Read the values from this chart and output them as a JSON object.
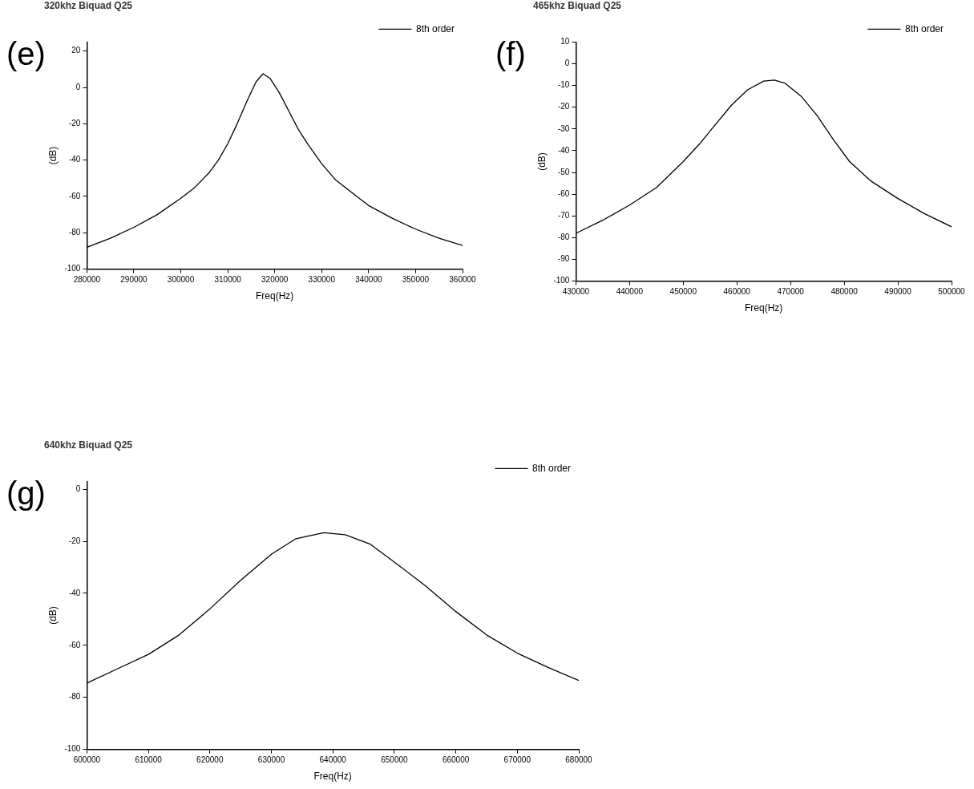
{
  "chart_data": [
    {
      "type": "line",
      "title": "320khz Biquad Q25",
      "xlabel": "Freq(Hz)",
      "ylabel": "(dB)",
      "annotations": [
        "(e)"
      ],
      "legend": "top right",
      "grid": false,
      "marker": "none",
      "line_style": "solid",
      "xlim": [
        280000,
        360000
      ],
      "xticks": [
        280000,
        290000,
        300000,
        310000,
        320000,
        330000,
        340000,
        350000,
        360000
      ],
      "ylim": [
        -100,
        25
      ],
      "yticks": [
        -100,
        -80,
        -60,
        -40,
        -20,
        0,
        20
      ],
      "series": [
        {
          "name": "8th order",
          "color": "#000000",
          "x": [
            280000,
            285000,
            290000,
            295000,
            300000,
            303000,
            306000,
            308000,
            310000,
            312000,
            314000,
            316000,
            317500,
            319000,
            321000,
            323000,
            325000,
            327000,
            330000,
            333000,
            336000,
            340000,
            345000,
            350000,
            355000,
            360000
          ],
          "values": [
            -88,
            -83,
            -77,
            -70,
            -61,
            -55,
            -47,
            -40,
            -31,
            -20,
            -8,
            3,
            7.5,
            5,
            -3,
            -13,
            -23,
            -31,
            -42,
            -51,
            -57,
            -65,
            -72,
            -78,
            -83,
            -87
          ]
        }
      ]
    },
    {
      "type": "line",
      "title": "465khz Biquad Q25",
      "xlabel": "Freq(Hz)",
      "ylabel": "(dB)",
      "annotations": [
        "(f)"
      ],
      "legend": "top right",
      "grid": false,
      "marker": "none",
      "line_style": "solid",
      "xlim": [
        430000,
        500000
      ],
      "xticks": [
        430000,
        440000,
        450000,
        460000,
        470000,
        480000,
        490000,
        500000
      ],
      "ylim": [
        -100,
        10
      ],
      "yticks": [
        -100,
        -90,
        -80,
        -70,
        -60,
        -50,
        -40,
        -30,
        -20,
        -10,
        0,
        10
      ],
      "series": [
        {
          "name": "8th order",
          "color": "#000000",
          "x": [
            430000,
            435000,
            440000,
            445000,
            450000,
            453000,
            456000,
            459000,
            462000,
            465000,
            467000,
            469000,
            472000,
            475000,
            478000,
            481000,
            485000,
            490000,
            495000,
            500000
          ],
          "values": [
            -78,
            -72,
            -65,
            -57,
            -45,
            -37,
            -28,
            -19,
            -12,
            -8,
            -7.5,
            -9,
            -15,
            -24,
            -35,
            -45,
            -54,
            -62,
            -69,
            -75
          ]
        }
      ]
    },
    {
      "type": "line",
      "title": "640khz Biquad Q25",
      "xlabel": "Freq(Hz)",
      "ylabel": "(dB)",
      "annotations": [
        "(g)"
      ],
      "legend": "top right",
      "grid": false,
      "marker": "none",
      "line_style": "solid",
      "xlim": [
        600000,
        680000
      ],
      "xticks": [
        600000,
        610000,
        620000,
        630000,
        640000,
        650000,
        660000,
        670000,
        680000
      ],
      "ylim": [
        -100,
        3
      ],
      "yticks": [
        -100,
        -80,
        -60,
        -40,
        -20,
        0
      ],
      "series": [
        {
          "name": "8th order",
          "color": "#000000",
          "x": [
            600000,
            605000,
            610000,
            615000,
            620000,
            625000,
            630000,
            634000,
            638500,
            642000,
            646000,
            650000,
            655000,
            660000,
            665000,
            670000,
            675000,
            680000
          ],
          "values": [
            -74.5,
            -69,
            -63.5,
            -56,
            -46,
            -35,
            -25,
            -19,
            -16.7,
            -17.5,
            -21,
            -28,
            -37,
            -47,
            -56,
            -63,
            -68.5,
            -73.5
          ]
        }
      ]
    }
  ]
}
